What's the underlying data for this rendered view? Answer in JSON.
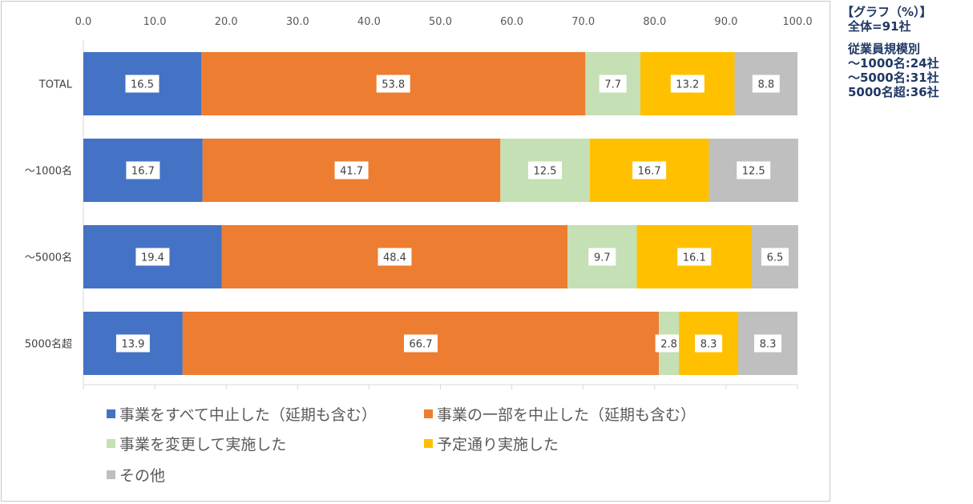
{
  "chart_data": {
    "type": "bar",
    "orientation": "horizontal",
    "stacked": true,
    "categories": [
      "TOTAL",
      "～1000名",
      "～5000名",
      "5000名超"
    ],
    "series": [
      {
        "name": "事業をすべて中止した（延期も含む）",
        "color": "#4472c4",
        "values": [
          16.5,
          16.7,
          19.4,
          13.9
        ]
      },
      {
        "name": "事業の一部を中止した（延期も含む）",
        "color": "#ed7d31",
        "values": [
          53.8,
          41.7,
          48.4,
          66.7
        ]
      },
      {
        "name": "事業を変更して実施した",
        "color": "#c5e0b4",
        "values": [
          7.7,
          12.5,
          9.7,
          2.8
        ]
      },
      {
        "name": "予定通り実施した",
        "color": "#ffc000",
        "values": [
          13.2,
          16.7,
          16.1,
          8.3
        ]
      },
      {
        "name": "その他",
        "color": "#bfbfbf",
        "values": [
          8.8,
          12.5,
          6.5,
          8.3
        ]
      }
    ],
    "xlim": [
      0,
      100
    ],
    "xticks": [
      "0.0",
      "10.0",
      "20.0",
      "30.0",
      "40.0",
      "50.0",
      "60.0",
      "70.0",
      "80.0",
      "90.0",
      "100.0"
    ],
    "xaxis_position": "top",
    "legend_position": "bottom",
    "grid": false,
    "data_labels": true
  },
  "side_note": {
    "lines": [
      "【グラフ（%）】",
      "全体=91社",
      "従業員規模別",
      "～1000名:24社",
      "～5000名:31社",
      "5000名超:36社"
    ]
  }
}
